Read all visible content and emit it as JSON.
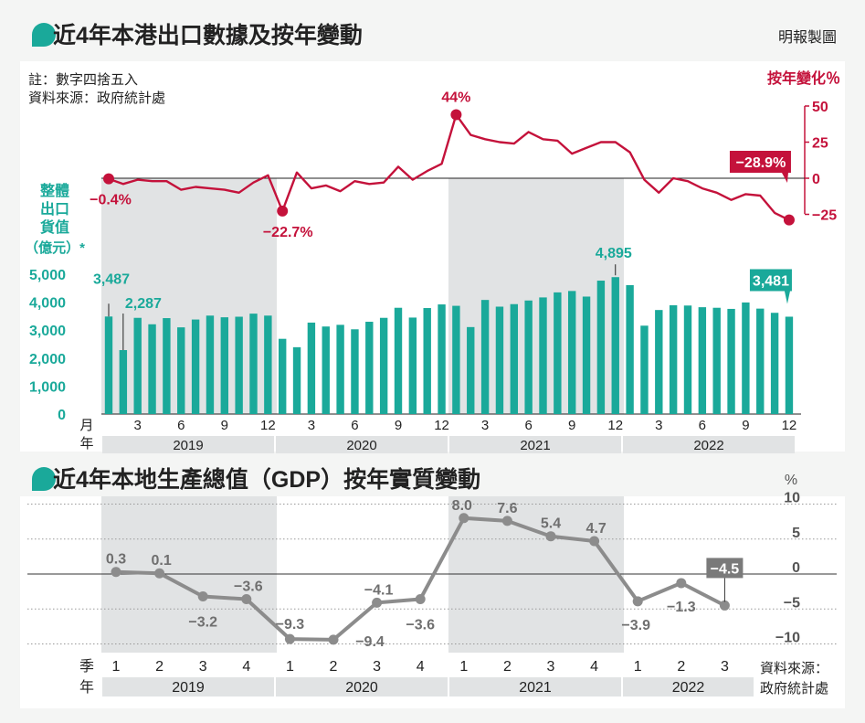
{
  "credit": "明報製圖",
  "exports": {
    "title": "近4年本港出口數據及按年變動",
    "notes": [
      "註：數字四捨五入",
      "資料來源：政府統計處"
    ],
    "colors": {
      "bars": "#1aa99a",
      "yoy_line": "#c4123b",
      "shade": "#e1e3e4",
      "header_dot": "#1aa99a"
    }
  },
  "gdp": {
    "title": "近4年本地生產總值（GDP）按年實質變動",
    "source": [
      "資料來源：",
      "政府統計處"
    ],
    "colors": {
      "line": "#8c8c8c",
      "highlight_label": "#7a7a7a",
      "header_dot": "#1aa99a"
    }
  },
  "chart_data": [
    {
      "type": "bar",
      "name": "exports",
      "ylabel": [
        "整體",
        "出口",
        "貨值",
        "（億元）*"
      ],
      "ylim": [
        0,
        5000
      ],
      "yticks": [
        "0",
        "1,000",
        "2,000",
        "3,000",
        "4,000",
        "5,000"
      ],
      "x_unit_label": "月",
      "year_unit_label": "年",
      "month_ticks": [
        "3",
        "6",
        "9",
        "12",
        "3",
        "6",
        "9",
        "12",
        "3",
        "6",
        "9",
        "12",
        "3",
        "6",
        "9",
        "12"
      ],
      "years": [
        "2019",
        "2020",
        "2021",
        "2022"
      ],
      "values": [
        3487,
        2287,
        3440,
        3210,
        3430,
        3100,
        3380,
        3520,
        3460,
        3480,
        3590,
        3520,
        2690,
        2390,
        3270,
        3130,
        3190,
        3030,
        3300,
        3440,
        3800,
        3450,
        3790,
        3920,
        3870,
        3110,
        4080,
        3840,
        3930,
        4060,
        4170,
        4350,
        4400,
        4200,
        4770,
        4895,
        4610,
        3160,
        3720,
        3890,
        3880,
        3820,
        3800,
        3760,
        3990,
        3770,
        3620,
        3481
      ],
      "data_labels": [
        {
          "index": 0,
          "text": "3,487"
        },
        {
          "index": 1,
          "text": "2,287"
        },
        {
          "index": 35,
          "text": "4,895"
        },
        {
          "index": 47,
          "text": "3,481"
        }
      ]
    },
    {
      "type": "line",
      "name": "exports_yoy",
      "ylabel": "按年變化％",
      "ylim": [
        -25,
        50
      ],
      "yticks": [
        "−25",
        "0",
        "25",
        "50"
      ],
      "values": [
        -0.4,
        -4,
        -1,
        -2,
        -2,
        -8,
        -6,
        -7,
        -8,
        -10,
        -3,
        2,
        -22.7,
        4,
        -7,
        -5,
        -9,
        -2,
        -4,
        -3,
        8,
        -1,
        5,
        10,
        44,
        30,
        27,
        25,
        24,
        32,
        27,
        26,
        17,
        21,
        25,
        25,
        18,
        -1,
        -10,
        0,
        -2,
        -7,
        -10,
        -15,
        -11,
        -12,
        -24,
        -28.9
      ],
      "data_labels": [
        {
          "index": 0,
          "text": "−0.4%"
        },
        {
          "index": 12,
          "text": "−22.7%"
        },
        {
          "index": 24,
          "text": "44%"
        },
        {
          "index": 47,
          "text": "−28.9%"
        }
      ]
    },
    {
      "type": "line",
      "name": "gdp",
      "ylabel": "%",
      "ylim": [
        -10,
        10
      ],
      "yticks": [
        "10",
        "5",
        "0",
        "−5",
        "−10"
      ],
      "x_unit_label": "季",
      "year_unit_label": "年",
      "quarters": [
        "1",
        "2",
        "3",
        "4",
        "1",
        "2",
        "3",
        "4",
        "1",
        "2",
        "3",
        "4",
        "1",
        "2",
        "3"
      ],
      "years": [
        "2019",
        "2020",
        "2021",
        "2022"
      ],
      "values": [
        0.3,
        0.1,
        -3.2,
        -3.6,
        -9.3,
        -9.4,
        -4.1,
        -3.6,
        8.0,
        7.6,
        5.4,
        4.7,
        -3.9,
        -1.3,
        -4.5
      ],
      "data_labels": [
        "0.3",
        "0.1",
        "−3.2",
        "−3.6",
        "−9.3",
        "−9.4",
        "−4.1",
        "−3.6",
        "8.0",
        "7.6",
        "5.4",
        "4.7",
        "−3.9",
        "−1.3",
        "−4.5"
      ]
    }
  ]
}
